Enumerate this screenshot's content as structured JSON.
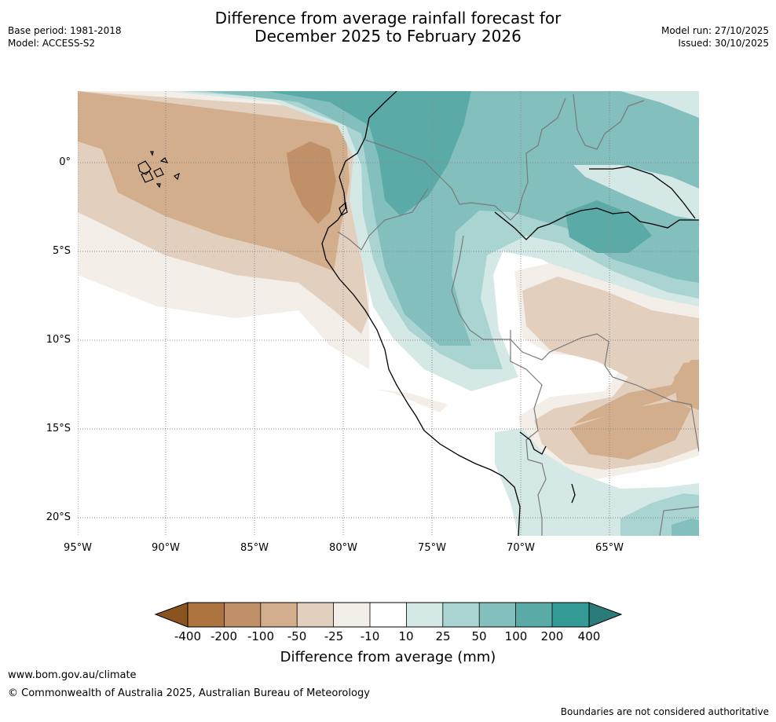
{
  "title": {
    "line1": "Difference from average rainfall forecast for",
    "line2": "December 2025 to February 2026"
  },
  "meta_left": {
    "base_period": "Base period: 1981-2018",
    "model": "Model: ACCESS-S2"
  },
  "meta_right": {
    "model_run": "Model run: 27/10/2025",
    "issued": "Issued: 30/10/2025"
  },
  "map": {
    "lat_labels": [
      "0°",
      "5°S",
      "10°S",
      "15°S",
      "20°S"
    ],
    "lon_labels": [
      "95°W",
      "90°W",
      "85°W",
      "80°W",
      "75°W",
      "70°W",
      "65°W"
    ]
  },
  "legend": {
    "ticks": [
      "-400",
      "-200",
      "-100",
      "-50",
      "-25",
      "-10",
      "10",
      "25",
      "50",
      "100",
      "200",
      "400"
    ],
    "colors": [
      "#8a5420",
      "#ad7440",
      "#c09068",
      "#d2ae8c",
      "#e3cfbe",
      "#f3eee8",
      "#ffffff",
      "#d4e8e6",
      "#a9d4d2",
      "#82bfbd",
      "#5aaaa8",
      "#349a96",
      "#2a7b7a"
    ],
    "label": "Difference from average (mm)"
  },
  "footer": {
    "url": "www.bom.gov.au/climate",
    "copyright": "© Commonwealth of Australia 2025, Australian Bureau of Meteorology",
    "note": "Boundaries are not considered authoritative"
  }
}
